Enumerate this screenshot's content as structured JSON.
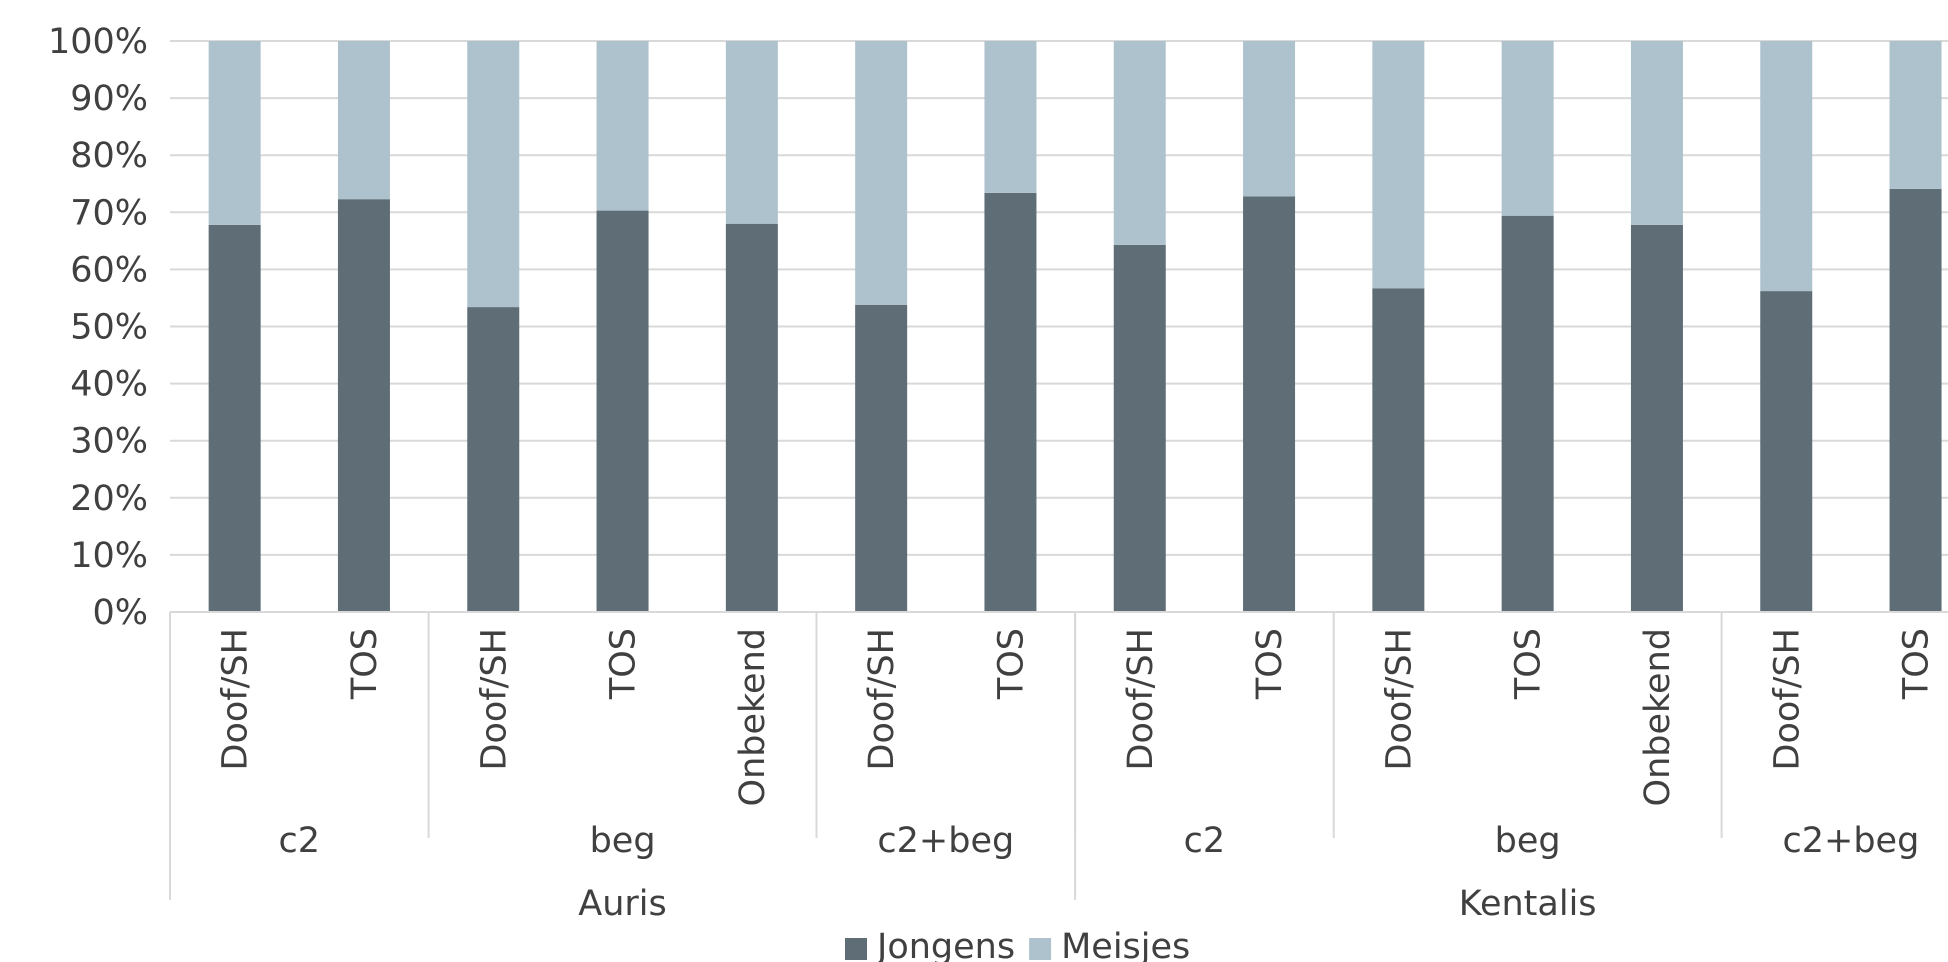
{
  "chart_data": {
    "type": "bar",
    "stacked": true,
    "orientation": "vertical",
    "y_axis": {
      "ticks": [
        "0%",
        "10%",
        "20%",
        "30%",
        "40%",
        "50%",
        "60%",
        "70%",
        "80%",
        "90%",
        "100%"
      ],
      "ylim": [
        0,
        100
      ]
    },
    "categories": [
      {
        "group": "Auris",
        "sub": "c2",
        "label": "Doof/SH"
      },
      {
        "group": "Auris",
        "sub": "c2",
        "label": "TOS"
      },
      {
        "group": "Auris",
        "sub": "beg",
        "label": "Doof/SH"
      },
      {
        "group": "Auris",
        "sub": "beg",
        "label": "TOS"
      },
      {
        "group": "Auris",
        "sub": "beg",
        "label": "Onbekend"
      },
      {
        "group": "Auris",
        "sub": "c2+beg",
        "label": "Doof/SH"
      },
      {
        "group": "Auris",
        "sub": "c2+beg",
        "label": "TOS"
      },
      {
        "group": "Kentalis",
        "sub": "c2",
        "label": "Doof/SH"
      },
      {
        "group": "Kentalis",
        "sub": "c2",
        "label": "TOS"
      },
      {
        "group": "Kentalis",
        "sub": "beg",
        "label": "Doof/SH"
      },
      {
        "group": "Kentalis",
        "sub": "beg",
        "label": "TOS"
      },
      {
        "group": "Kentalis",
        "sub": "beg",
        "label": "Onbekend"
      },
      {
        "group": "Kentalis",
        "sub": "c2+beg",
        "label": "Doof/SH"
      },
      {
        "group": "Kentalis",
        "sub": "c2+beg",
        "label": "TOS"
      }
    ],
    "sub_groups": [
      {
        "label": "c2",
        "group": "Auris"
      },
      {
        "label": "beg",
        "group": "Auris"
      },
      {
        "label": "c2+beg",
        "group": "Auris"
      },
      {
        "label": "c2",
        "group": "Kentalis"
      },
      {
        "label": "beg",
        "group": "Kentalis"
      },
      {
        "label": "c2+beg",
        "group": "Kentalis"
      }
    ],
    "groups": [
      "Auris",
      "Kentalis"
    ],
    "series": [
      {
        "name": "Jongens",
        "color": "#5f6e76",
        "values": [
          67.8,
          72.3,
          53.4,
          70.3,
          68.0,
          53.8,
          73.4,
          64.3,
          72.8,
          56.7,
          69.4,
          67.8,
          56.2,
          74.1
        ]
      },
      {
        "name": "Meisjes",
        "color": "#aec2cd",
        "values": [
          32.2,
          27.7,
          46.6,
          29.7,
          32.0,
          46.2,
          26.6,
          35.7,
          27.2,
          43.3,
          30.6,
          32.2,
          43.8,
          25.9
        ]
      }
    ],
    "grid": true,
    "legend": "bottom-center"
  }
}
